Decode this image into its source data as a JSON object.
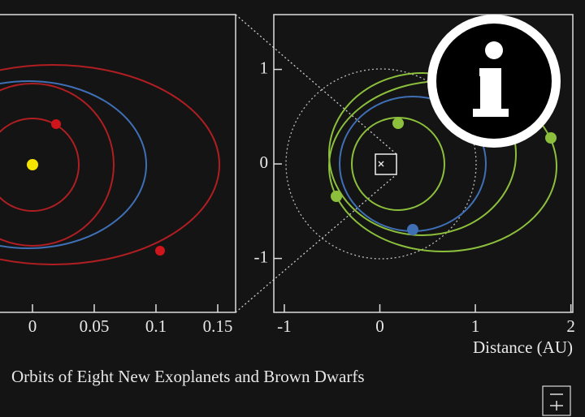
{
  "chart_data": [
    {
      "type": "orbit",
      "xlim": [
        -0.0263,
        0.1645
      ],
      "xticks": [
        0,
        0.05,
        0.1,
        0.15
      ]
    },
    {
      "type": "orbit",
      "xlim": [
        -1.11,
        2.02
      ],
      "ylim": [
        -1.57,
        1.58
      ],
      "xticks": [
        -1,
        0,
        1,
        2
      ],
      "yticks": [
        1,
        0,
        -1
      ],
      "x_label": "Distance (AU)"
    }
  ],
  "caption": "Orbits of Eight New Exoplanets and Brown Dwarfs"
}
